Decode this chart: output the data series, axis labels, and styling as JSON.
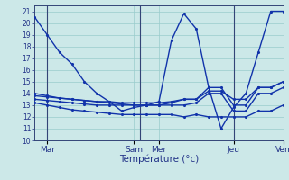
{
  "xlabel": "Température (°c)",
  "xlim": [
    0,
    20
  ],
  "ylim": [
    10,
    21.5
  ],
  "yticks": [
    10,
    11,
    12,
    13,
    14,
    15,
    16,
    17,
    18,
    19,
    20,
    21
  ],
  "xtick_positions": [
    1,
    8,
    10,
    16,
    20
  ],
  "xtick_labels": [
    "Mar",
    "Sam",
    "Mer",
    "Jeu",
    "Ven"
  ],
  "vlines": [
    1,
    8.5,
    10.5,
    16,
    20
  ],
  "background_color": "#cce8e8",
  "grid_color": "#99cccc",
  "line_color": "#1133aa",
  "main_x": [
    0,
    1,
    2,
    3,
    4,
    5,
    6,
    7,
    8,
    9,
    10,
    11,
    12,
    13,
    14,
    15,
    16,
    17,
    18,
    19,
    20
  ],
  "main_y": [
    20.5,
    19.0,
    17.5,
    16.5,
    15.0,
    14.0,
    13.3,
    12.5,
    12.8,
    13.0,
    13.3,
    18.5,
    20.8,
    19.5,
    14.5,
    11.0,
    12.8,
    14.0,
    17.5,
    21.0,
    21.0
  ],
  "s1_x": [
    0,
    1,
    2,
    3,
    4,
    5,
    6,
    7,
    8,
    9,
    10,
    11,
    12,
    13,
    14,
    15,
    16,
    17,
    18,
    19,
    20
  ],
  "s1_y": [
    14.0,
    13.8,
    13.6,
    13.5,
    13.4,
    13.3,
    13.2,
    13.1,
    13.0,
    13.0,
    13.0,
    13.2,
    13.5,
    13.5,
    14.5,
    14.5,
    13.0,
    13.0,
    14.5,
    14.5,
    15.0
  ],
  "s2_x": [
    0,
    1,
    2,
    3,
    4,
    5,
    6,
    7,
    8,
    9,
    10,
    11,
    12,
    13,
    14,
    15,
    16,
    17,
    18,
    19,
    20
  ],
  "s2_y": [
    13.2,
    13.0,
    12.8,
    12.6,
    12.5,
    12.4,
    12.3,
    12.2,
    12.2,
    12.2,
    12.2,
    12.2,
    12.0,
    12.2,
    12.0,
    12.0,
    12.0,
    12.0,
    12.5,
    12.5,
    13.0
  ],
  "s3_x": [
    0,
    1,
    2,
    3,
    4,
    5,
    6,
    7,
    8,
    9,
    10,
    11,
    12,
    13,
    14,
    15,
    16,
    17,
    18,
    19,
    20
  ],
  "s3_y": [
    13.5,
    13.4,
    13.3,
    13.2,
    13.1,
    13.0,
    13.0,
    13.0,
    13.0,
    13.0,
    13.0,
    13.0,
    13.0,
    13.2,
    14.0,
    14.0,
    12.5,
    12.5,
    14.0,
    14.0,
    14.5
  ],
  "s4_x": [
    0,
    1,
    2,
    3,
    4,
    5,
    6,
    7,
    8,
    9,
    10,
    11,
    12,
    13,
    14,
    15,
    16,
    17,
    18,
    19,
    20
  ],
  "s4_y": [
    13.8,
    13.7,
    13.6,
    13.5,
    13.4,
    13.3,
    13.3,
    13.2,
    13.2,
    13.2,
    13.2,
    13.3,
    13.5,
    13.5,
    14.2,
    14.2,
    13.5,
    13.5,
    14.5,
    14.5,
    15.0
  ]
}
